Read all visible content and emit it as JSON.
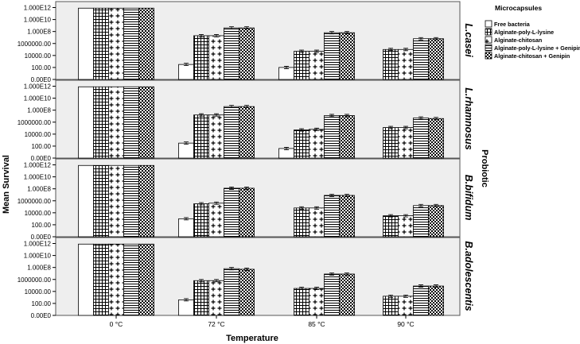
{
  "chart_data": {
    "type": "bar",
    "scale": "log10",
    "xlabel": "Temperature",
    "ylabel": "Mean Survival",
    "facet_label": "Probiotic",
    "legend_title": "Microcapsules",
    "legend_position": "top-right",
    "categories": [
      "0 °C",
      "72 °C",
      "85 °C",
      "90 °C"
    ],
    "series": [
      {
        "name": "Free bacteria",
        "pattern": "plain"
      },
      {
        "name": "Alginate-poly-L-lysine",
        "pattern": "grid"
      },
      {
        "name": "Alginate-chitosan",
        "pattern": "cross"
      },
      {
        "name": "Alginate-poly-L-lysine + Genipin",
        "pattern": "hlines"
      },
      {
        "name": "Alginate-chitosan + Genipin",
        "pattern": "checker"
      }
    ],
    "y_ticks": [
      {
        "label": "1.000E12",
        "exp": 12
      },
      {
        "label": "1.000E10",
        "exp": 10
      },
      {
        "label": "1.000E8",
        "exp": 8
      },
      {
        "label": "1000000.00",
        "exp": 6
      },
      {
        "label": "10000.00",
        "exp": 4
      },
      {
        "label": "100.00",
        "exp": 2
      },
      {
        "label": "0.00E0",
        "exp": 0
      }
    ],
    "ylim_log10": [
      0,
      12.2
    ],
    "panels": [
      {
        "name": "L.casei",
        "log_values": [
          [
            11.9,
            11.9,
            11.9,
            11.9,
            11.9
          ],
          [
            2.5,
            7.3,
            7.3,
            8.6,
            8.6
          ],
          [
            2.0,
            4.7,
            4.7,
            7.8,
            7.8
          ],
          [
            null,
            5.0,
            5.0,
            6.8,
            6.8
          ]
        ]
      },
      {
        "name": "L.rhamnosus",
        "log_values": [
          [
            11.9,
            11.9,
            11.9,
            11.9,
            11.9
          ],
          [
            2.5,
            7.2,
            7.2,
            8.6,
            8.6
          ],
          [
            1.6,
            4.7,
            4.8,
            7.1,
            7.1
          ],
          [
            null,
            5.1,
            5.1,
            6.7,
            6.6
          ]
        ]
      },
      {
        "name": "B.bifidum",
        "log_values": [
          [
            11.9,
            11.9,
            11.9,
            11.9,
            11.9
          ],
          [
            3.0,
            5.5,
            5.6,
            8.1,
            8.1
          ],
          [
            null,
            4.8,
            4.8,
            6.9,
            6.9
          ],
          [
            null,
            3.5,
            3.5,
            5.2,
            5.2
          ]
        ]
      },
      {
        "name": "B.adolescentis",
        "log_values": [
          [
            11.9,
            11.9,
            11.9,
            11.9,
            11.9
          ],
          [
            2.6,
            5.8,
            5.8,
            7.8,
            7.7
          ],
          [
            null,
            4.5,
            4.5,
            6.9,
            6.9
          ],
          [
            null,
            3.2,
            3.2,
            4.9,
            4.9
          ]
        ]
      }
    ]
  }
}
